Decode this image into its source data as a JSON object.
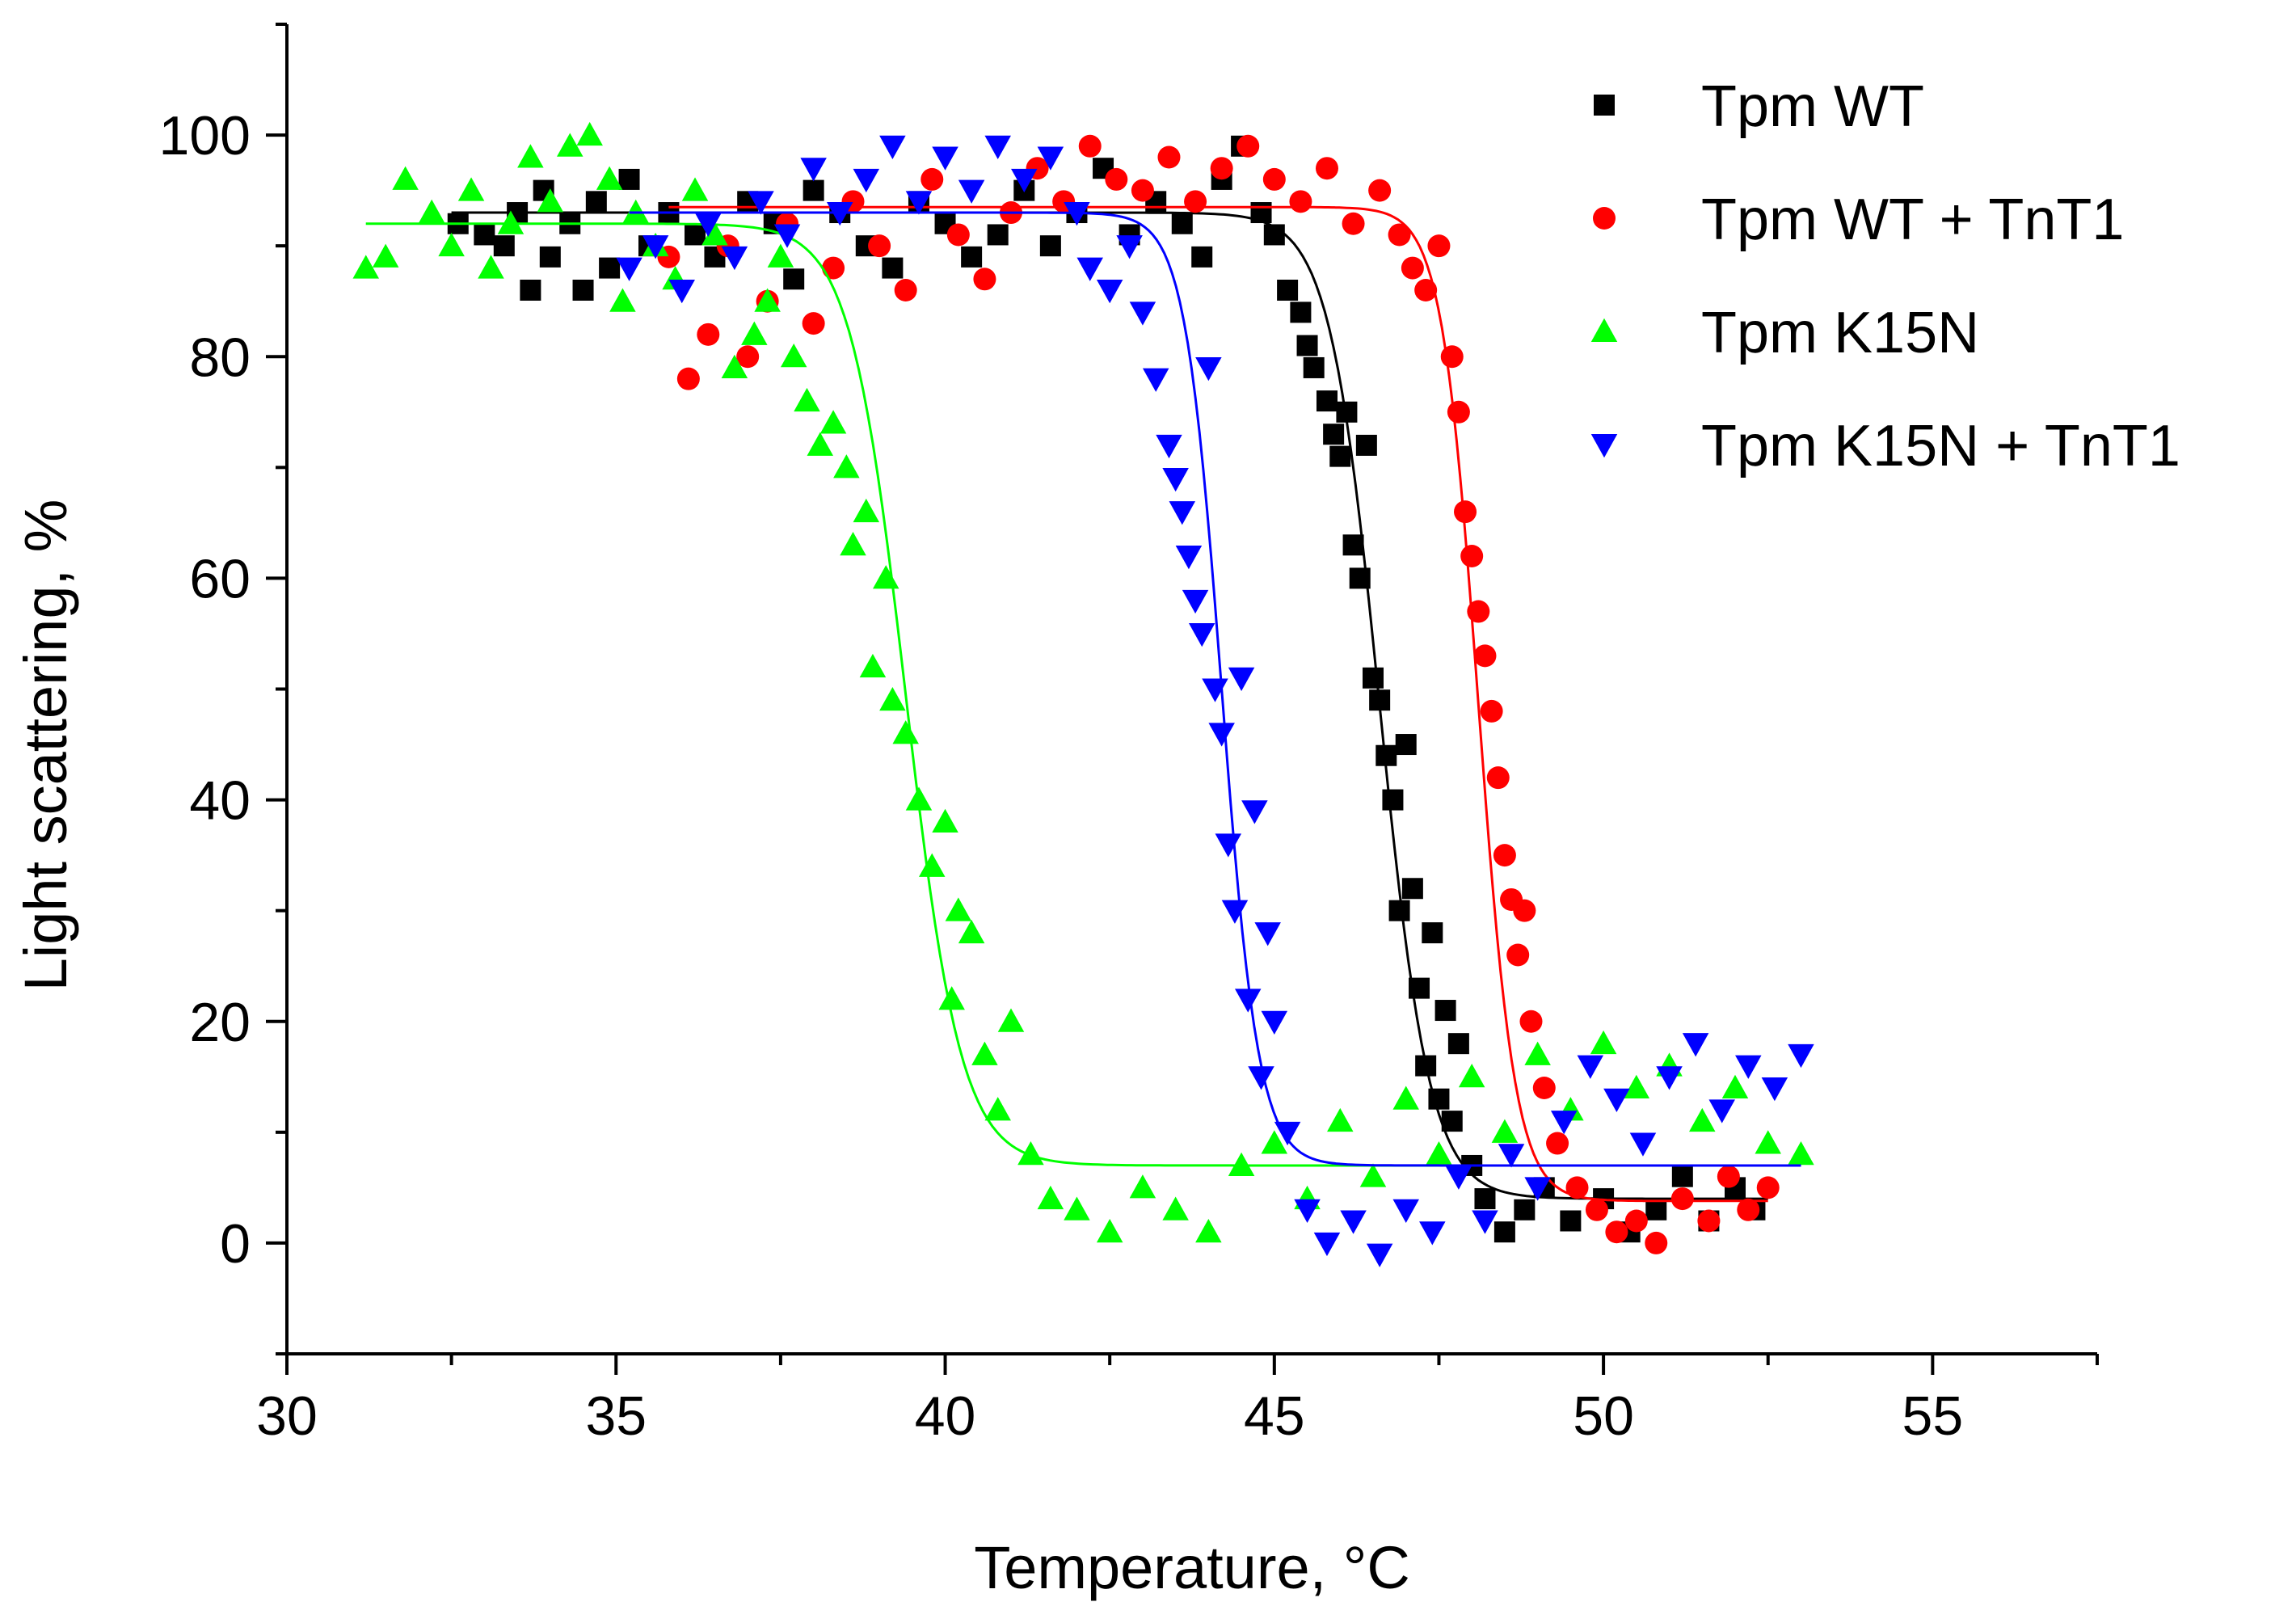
{
  "chart_data": {
    "type": "scatter",
    "xlabel": "Temperature, °C",
    "ylabel": "Light scattering, %",
    "xlim": [
      30,
      57.5
    ],
    "ylim": [
      -10,
      110
    ],
    "xticks": [
      30,
      35,
      40,
      45,
      50,
      55
    ],
    "yticks": [
      0,
      20,
      40,
      60,
      80,
      100
    ],
    "grid": false,
    "legend_position": "top-right",
    "series": [
      {
        "name": "Tpm WT",
        "color": "#000000",
        "marker": "square",
        "fit": {
          "top": 93,
          "bottom": 4,
          "tm": 46.6,
          "slope": 0.38,
          "x_range": [
            32.5,
            52.5
          ]
        },
        "points": [
          [
            32.6,
            92
          ],
          [
            33,
            91
          ],
          [
            33.3,
            90
          ],
          [
            33.5,
            93
          ],
          [
            33.7,
            86
          ],
          [
            33.9,
            95
          ],
          [
            34,
            89
          ],
          [
            34.3,
            92
          ],
          [
            34.5,
            86
          ],
          [
            34.7,
            94
          ],
          [
            34.9,
            88
          ],
          [
            35.2,
            96
          ],
          [
            35.5,
            90
          ],
          [
            35.8,
            93
          ],
          [
            36.2,
            91
          ],
          [
            36.5,
            89
          ],
          [
            37,
            94
          ],
          [
            37.4,
            92
          ],
          [
            37.7,
            87
          ],
          [
            38,
            95
          ],
          [
            38.4,
            93
          ],
          [
            38.8,
            90
          ],
          [
            39.2,
            88
          ],
          [
            39.6,
            94
          ],
          [
            40,
            92
          ],
          [
            40.4,
            89
          ],
          [
            40.8,
            91
          ],
          [
            41.2,
            95
          ],
          [
            41.6,
            90
          ],
          [
            42,
            93
          ],
          [
            42.4,
            97
          ],
          [
            42.8,
            91
          ],
          [
            43.2,
            94
          ],
          [
            43.6,
            92
          ],
          [
            43.9,
            89
          ],
          [
            44.2,
            96
          ],
          [
            44.5,
            99
          ],
          [
            44.8,
            93
          ],
          [
            45,
            91
          ],
          [
            45.2,
            86
          ],
          [
            45.4,
            84
          ],
          [
            45.5,
            81
          ],
          [
            45.6,
            79
          ],
          [
            45.8,
            76
          ],
          [
            45.9,
            73
          ],
          [
            46,
            71
          ],
          [
            46.1,
            75
          ],
          [
            46.2,
            63
          ],
          [
            46.3,
            60
          ],
          [
            46.4,
            72
          ],
          [
            46.5,
            51
          ],
          [
            46.6,
            49
          ],
          [
            46.7,
            44
          ],
          [
            46.8,
            40
          ],
          [
            46.9,
            30
          ],
          [
            47,
            45
          ],
          [
            47.1,
            32
          ],
          [
            47.2,
            23
          ],
          [
            47.3,
            16
          ],
          [
            47.4,
            28
          ],
          [
            47.5,
            13
          ],
          [
            47.6,
            21
          ],
          [
            47.7,
            11
          ],
          [
            47.8,
            18
          ],
          [
            48,
            7
          ],
          [
            48.2,
            4
          ],
          [
            48.5,
            1
          ],
          [
            48.8,
            3
          ],
          [
            49.1,
            5
          ],
          [
            49.5,
            2
          ],
          [
            50,
            4
          ],
          [
            50.4,
            1
          ],
          [
            50.8,
            3
          ],
          [
            51.2,
            6
          ],
          [
            51.6,
            2
          ],
          [
            52,
            5
          ],
          [
            52.3,
            3
          ]
        ]
      },
      {
        "name": "Tpm WT + TnT1",
        "color": "#ff0000",
        "marker": "circle",
        "fit": {
          "top": 93.5,
          "bottom": 3.8,
          "tm": 48.1,
          "slope": 0.28,
          "x_range": [
            35.8,
            52.5
          ]
        },
        "points": [
          [
            35.8,
            89
          ],
          [
            36.1,
            78
          ],
          [
            36.4,
            82
          ],
          [
            36.7,
            90
          ],
          [
            37,
            80
          ],
          [
            37.3,
            85
          ],
          [
            37.6,
            92
          ],
          [
            38,
            83
          ],
          [
            38.3,
            88
          ],
          [
            38.6,
            94
          ],
          [
            39,
            90
          ],
          [
            39.4,
            86
          ],
          [
            39.8,
            96
          ],
          [
            40.2,
            91
          ],
          [
            40.6,
            87
          ],
          [
            41,
            93
          ],
          [
            41.4,
            97
          ],
          [
            41.8,
            94
          ],
          [
            42.2,
            99
          ],
          [
            42.6,
            96
          ],
          [
            43,
            95
          ],
          [
            43.4,
            98
          ],
          [
            43.8,
            94
          ],
          [
            44.2,
            97
          ],
          [
            44.6,
            99
          ],
          [
            45,
            96
          ],
          [
            45.4,
            94
          ],
          [
            45.8,
            97
          ],
          [
            46.2,
            92
          ],
          [
            46.6,
            95
          ],
          [
            46.9,
            91
          ],
          [
            47.1,
            88
          ],
          [
            47.3,
            86
          ],
          [
            47.5,
            90
          ],
          [
            47.7,
            80
          ],
          [
            47.8,
            75
          ],
          [
            47.9,
            66
          ],
          [
            48,
            62
          ],
          [
            48.1,
            57
          ],
          [
            48.2,
            53
          ],
          [
            48.3,
            48
          ],
          [
            48.4,
            42
          ],
          [
            48.5,
            35
          ],
          [
            48.6,
            31
          ],
          [
            48.7,
            26
          ],
          [
            48.8,
            30
          ],
          [
            48.9,
            20
          ],
          [
            49.1,
            14
          ],
          [
            49.3,
            9
          ],
          [
            49.6,
            5
          ],
          [
            49.9,
            3
          ],
          [
            50.2,
            1
          ],
          [
            50.5,
            2
          ],
          [
            50.8,
            0
          ],
          [
            51.2,
            4
          ],
          [
            51.6,
            2
          ],
          [
            51.9,
            6
          ],
          [
            52.2,
            3
          ],
          [
            52.5,
            5
          ]
        ]
      },
      {
        "name": "Tpm K15N",
        "color": "#00ff00",
        "marker": "triangle-up",
        "fit": {
          "top": 92,
          "bottom": 7,
          "tm": 39.4,
          "slope": 0.42,
          "x_range": [
            31.2,
            53
          ]
        },
        "points": [
          [
            31.2,
            88
          ],
          [
            31.5,
            89
          ],
          [
            31.8,
            96
          ],
          [
            32.2,
            93
          ],
          [
            32.5,
            90
          ],
          [
            32.8,
            95
          ],
          [
            33.1,
            88
          ],
          [
            33.4,
            92
          ],
          [
            33.7,
            98
          ],
          [
            34,
            94
          ],
          [
            34.3,
            99
          ],
          [
            34.6,
            100
          ],
          [
            34.9,
            96
          ],
          [
            35.1,
            85
          ],
          [
            35.3,
            93
          ],
          [
            35.6,
            90
          ],
          [
            35.9,
            87
          ],
          [
            36.2,
            95
          ],
          [
            36.5,
            91
          ],
          [
            36.8,
            79
          ],
          [
            37.1,
            82
          ],
          [
            37.3,
            85
          ],
          [
            37.5,
            89
          ],
          [
            37.7,
            80
          ],
          [
            37.9,
            76
          ],
          [
            38.1,
            72
          ],
          [
            38.3,
            74
          ],
          [
            38.5,
            70
          ],
          [
            38.6,
            63
          ],
          [
            38.8,
            66
          ],
          [
            38.9,
            52
          ],
          [
            39.1,
            60
          ],
          [
            39.2,
            49
          ],
          [
            39.4,
            46
          ],
          [
            39.6,
            40
          ],
          [
            39.8,
            34
          ],
          [
            40,
            38
          ],
          [
            40.1,
            22
          ],
          [
            40.2,
            30
          ],
          [
            40.4,
            28
          ],
          [
            40.6,
            17
          ],
          [
            40.8,
            12
          ],
          [
            41,
            20
          ],
          [
            41.3,
            8
          ],
          [
            41.6,
            4
          ],
          [
            42,
            3
          ],
          [
            42.5,
            1
          ],
          [
            43,
            5
          ],
          [
            43.5,
            3
          ],
          [
            44,
            1
          ],
          [
            44.5,
            7
          ],
          [
            45,
            9
          ],
          [
            45.5,
            4
          ],
          [
            46,
            11
          ],
          [
            46.5,
            6
          ],
          [
            47,
            13
          ],
          [
            47.5,
            8
          ],
          [
            48,
            15
          ],
          [
            48.5,
            10
          ],
          [
            49,
            17
          ],
          [
            49.5,
            12
          ],
          [
            50,
            18
          ],
          [
            50.5,
            14
          ],
          [
            51,
            16
          ],
          [
            51.5,
            11
          ],
          [
            52,
            14
          ],
          [
            52.5,
            9
          ],
          [
            53,
            8
          ]
        ]
      },
      {
        "name": "Tpm K15N + TnT1",
        "color": "#0000ff",
        "marker": "triangle-down",
        "fit": {
          "top": 93,
          "bottom": 7,
          "tm": 44.2,
          "slope": 0.28,
          "x_range": [
            35.2,
            53
          ]
        },
        "points": [
          [
            35.2,
            88
          ],
          [
            35.6,
            90
          ],
          [
            36,
            86
          ],
          [
            36.4,
            92
          ],
          [
            36.8,
            89
          ],
          [
            37.2,
            94
          ],
          [
            37.6,
            91
          ],
          [
            38,
            97
          ],
          [
            38.4,
            93
          ],
          [
            38.8,
            96
          ],
          [
            39.2,
            99
          ],
          [
            39.6,
            94
          ],
          [
            40,
            98
          ],
          [
            40.4,
            95
          ],
          [
            40.8,
            99
          ],
          [
            41.2,
            96
          ],
          [
            41.6,
            98
          ],
          [
            42,
            93
          ],
          [
            42.2,
            88
          ],
          [
            42.5,
            86
          ],
          [
            42.8,
            90
          ],
          [
            43,
            84
          ],
          [
            43.2,
            78
          ],
          [
            43.4,
            72
          ],
          [
            43.5,
            69
          ],
          [
            43.6,
            66
          ],
          [
            43.7,
            62
          ],
          [
            43.8,
            58
          ],
          [
            43.9,
            55
          ],
          [
            44,
            79
          ],
          [
            44.1,
            50
          ],
          [
            44.2,
            46
          ],
          [
            44.3,
            36
          ],
          [
            44.4,
            30
          ],
          [
            44.5,
            51
          ],
          [
            44.6,
            22
          ],
          [
            44.7,
            39
          ],
          [
            44.8,
            15
          ],
          [
            44.9,
            28
          ],
          [
            45,
            20
          ],
          [
            45.2,
            10
          ],
          [
            45.5,
            3
          ],
          [
            45.8,
            0
          ],
          [
            46.2,
            2
          ],
          [
            46.6,
            -1
          ],
          [
            47,
            3
          ],
          [
            47.4,
            1
          ],
          [
            47.8,
            6
          ],
          [
            48.2,
            2
          ],
          [
            48.6,
            8
          ],
          [
            49,
            5
          ],
          [
            49.4,
            11
          ],
          [
            49.8,
            16
          ],
          [
            50.2,
            13
          ],
          [
            50.6,
            9
          ],
          [
            51,
            15
          ],
          [
            51.4,
            18
          ],
          [
            51.8,
            12
          ],
          [
            52.2,
            16
          ],
          [
            52.6,
            14
          ],
          [
            53,
            17
          ]
        ]
      }
    ]
  }
}
